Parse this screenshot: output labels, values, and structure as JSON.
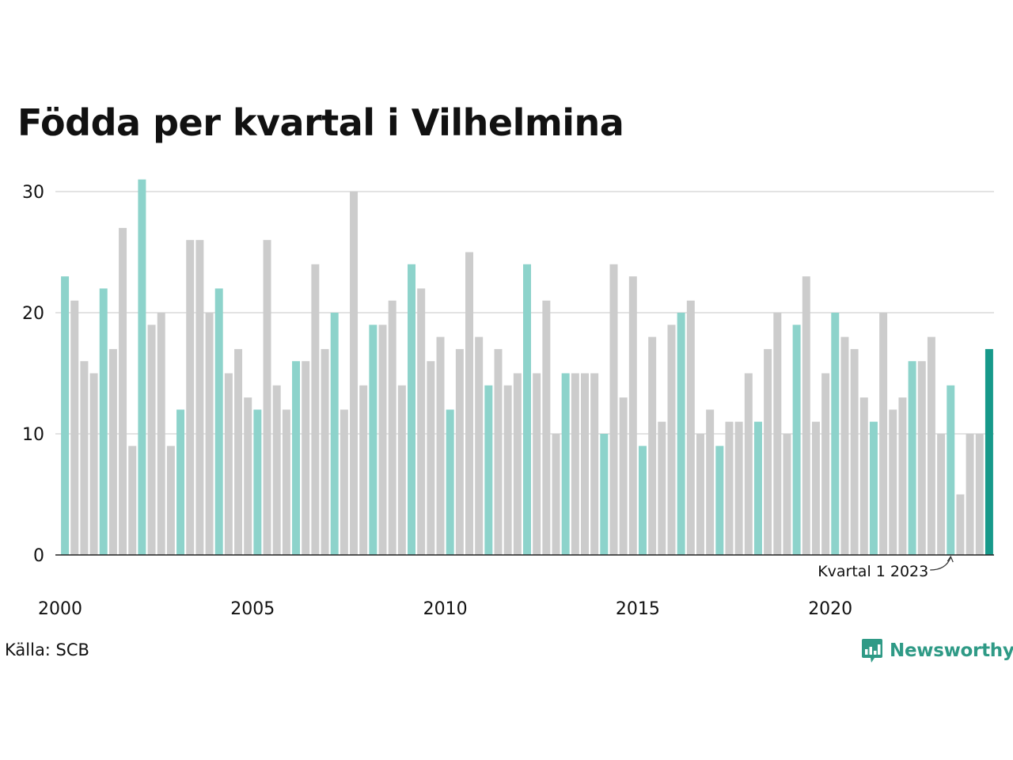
{
  "title": "Födda per kvartal i Vilhelmina",
  "source": "Källa: SCB",
  "brand": {
    "name": "Newsworthy",
    "icon": "chart-bubble-icon"
  },
  "colors": {
    "q1": "#8dd3cb",
    "other": "#cccccc",
    "latest": "#17998a",
    "grid": "#e3e3e3",
    "axis": "#222222",
    "brand": "#2f9a86"
  },
  "chart_data": {
    "type": "bar",
    "title": "Födda per kvartal i Vilhelmina",
    "xlabel": "",
    "ylabel": "",
    "ylim": [
      0,
      30
    ],
    "yticks": [
      "0",
      "10",
      "20",
      "30"
    ],
    "xticks": [
      "2000",
      "2005",
      "2010",
      "2015",
      "2020"
    ],
    "grid": true,
    "start_year": 2000,
    "annotation": {
      "text": "Kvartal 1 2023",
      "year": 2023,
      "quarter": 1
    },
    "values": [
      23,
      21,
      16,
      15,
      22,
      17,
      27,
      9,
      31,
      19,
      20,
      9,
      12,
      26,
      26,
      20,
      22,
      15,
      17,
      13,
      12,
      26,
      14,
      12,
      16,
      16,
      24,
      17,
      20,
      12,
      30,
      14,
      19,
      19,
      21,
      14,
      24,
      22,
      16,
      18,
      12,
      17,
      25,
      18,
      14,
      17,
      14,
      15,
      24,
      15,
      21,
      10,
      15,
      15,
      15,
      15,
      10,
      24,
      13,
      23,
      9,
      18,
      11,
      19,
      20,
      21,
      10,
      12,
      9,
      11,
      11,
      15,
      11,
      17,
      20,
      10,
      19,
      23,
      11,
      15,
      20,
      18,
      17,
      13,
      11,
      20,
      12,
      13,
      16,
      16,
      18,
      10,
      14,
      5,
      10,
      10,
      17
    ]
  }
}
